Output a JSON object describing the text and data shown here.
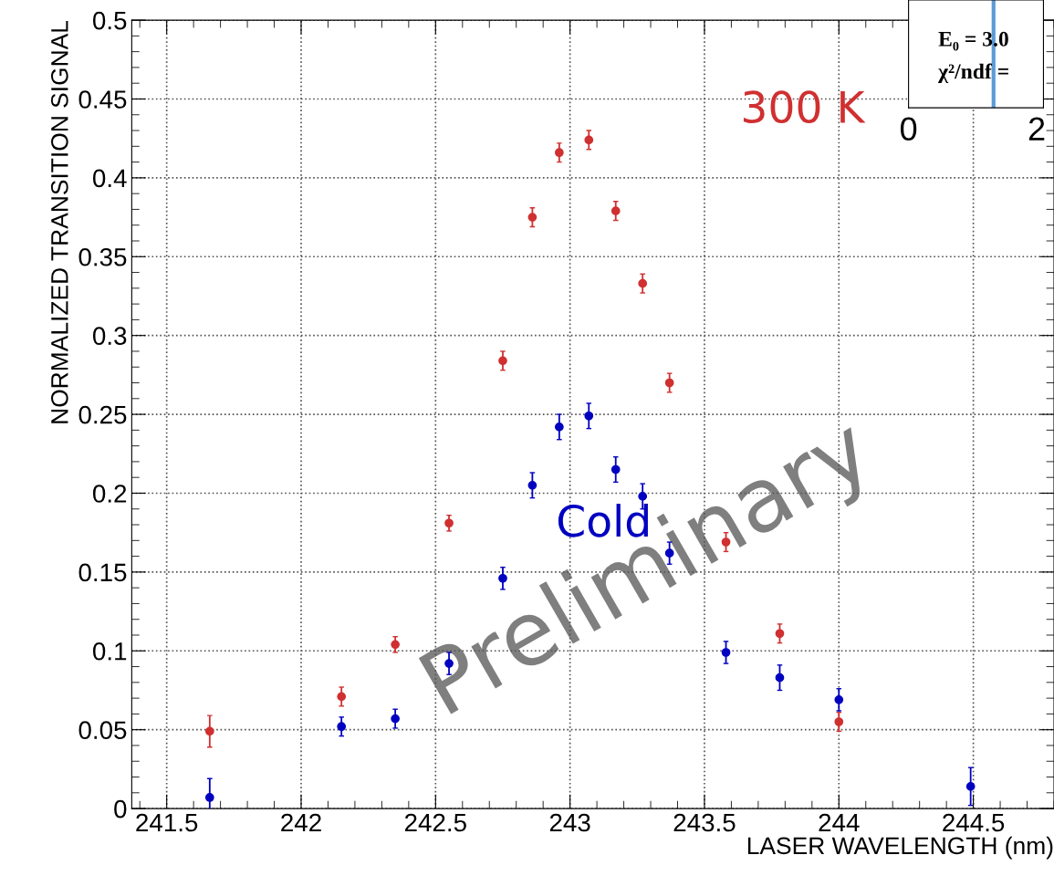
{
  "chart_data": [
    {
      "type": "scatter",
      "xlabel": "LASER WAVELENGTH (nm)",
      "ylabel": "NORMALIZED TRANSITION SIGNAL",
      "x": [
        241.66,
        242.15,
        242.35,
        242.55,
        242.75,
        242.86,
        242.96,
        243.07,
        243.17,
        243.27,
        243.37,
        243.58,
        243.78,
        244.0
      ],
      "series": [
        {
          "name": "300 K",
          "color": "#d03030",
          "values": [
            0.049,
            0.071,
            0.104,
            0.181,
            0.284,
            0.375,
            0.416,
            0.424,
            0.379,
            0.333,
            0.27,
            0.169,
            0.111,
            0.055
          ],
          "errors": [
            0.01,
            0.006,
            0.005,
            0.005,
            0.006,
            0.006,
            0.006,
            0.006,
            0.006,
            0.006,
            0.006,
            0.006,
            0.006,
            0.006
          ]
        },
        {
          "name": "Cold",
          "color": "#0000c0",
          "x": [
            241.66,
            242.15,
            242.35,
            242.55,
            242.75,
            242.86,
            242.96,
            243.07,
            243.17,
            243.27,
            243.37,
            243.58,
            243.78,
            244.0,
            244.49
          ],
          "values": [
            0.007,
            0.052,
            0.057,
            0.092,
            0.146,
            0.205,
            0.242,
            0.249,
            0.215,
            0.198,
            0.162,
            0.099,
            0.083,
            0.069,
            0.014
          ],
          "errors": [
            0.012,
            0.006,
            0.006,
            0.007,
            0.007,
            0.008,
            0.008,
            0.008,
            0.008,
            0.008,
            0.007,
            0.007,
            0.008,
            0.007,
            0.012
          ]
        }
      ],
      "xlim": [
        241.37,
        244.8
      ],
      "xticks": [
        241.5,
        242,
        242.5,
        243,
        243.5,
        244,
        244.5
      ],
      "ylim": [
        0,
        0.5
      ],
      "yticks": [
        0,
        0.05,
        0.1,
        0.15,
        0.2,
        0.25,
        0.3,
        0.35,
        0.4,
        0.45,
        0.5
      ],
      "grid": true,
      "marker": "circle",
      "legend": false,
      "annotations": [
        "Preliminary"
      ]
    },
    {
      "type": "other",
      "annotations": [
        "E₀ = 3.0",
        "χ²/ndf =",
        "0",
        "2"
      ]
    }
  ]
}
